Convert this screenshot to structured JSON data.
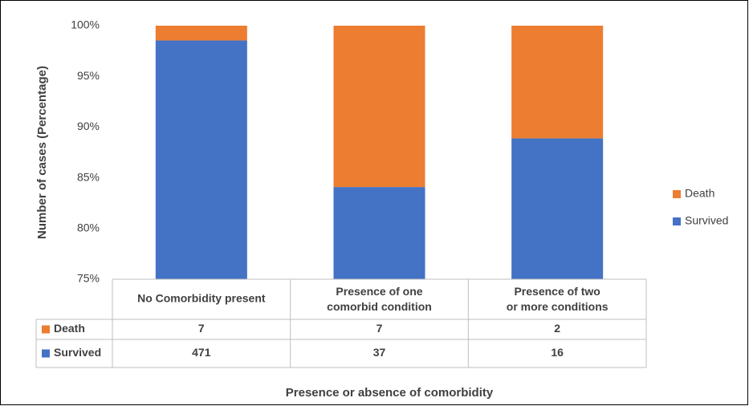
{
  "chart_data": {
    "type": "stacked_bar_100",
    "x_label": "Presence or absence of comorbidity",
    "y_label": "Number of cases (Percentage)",
    "categories": [
      "No Comorbidity present",
      "Presence of one comorbid condition",
      "Presence of two or more conditions"
    ],
    "series": [
      {
        "name": "Death",
        "color": "#ed7d31",
        "values": [
          1.46,
          15.91,
          11.11
        ],
        "counts": [
          7,
          7,
          2
        ]
      },
      {
        "name": "Survived",
        "color": "#4472c4",
        "values": [
          98.54,
          84.09,
          88.89
        ],
        "counts": [
          471,
          37,
          16
        ]
      }
    ],
    "ylim": [
      75,
      100
    ],
    "yticks": [
      {
        "value": 75,
        "label": "75%"
      },
      {
        "value": 80,
        "label": "80%"
      },
      {
        "value": 85,
        "label": "85%"
      },
      {
        "value": 90,
        "label": "90%"
      },
      {
        "value": 95,
        "label": "95%"
      },
      {
        "value": 100,
        "label": "100%"
      }
    ],
    "grid": false,
    "legend": "right"
  }
}
